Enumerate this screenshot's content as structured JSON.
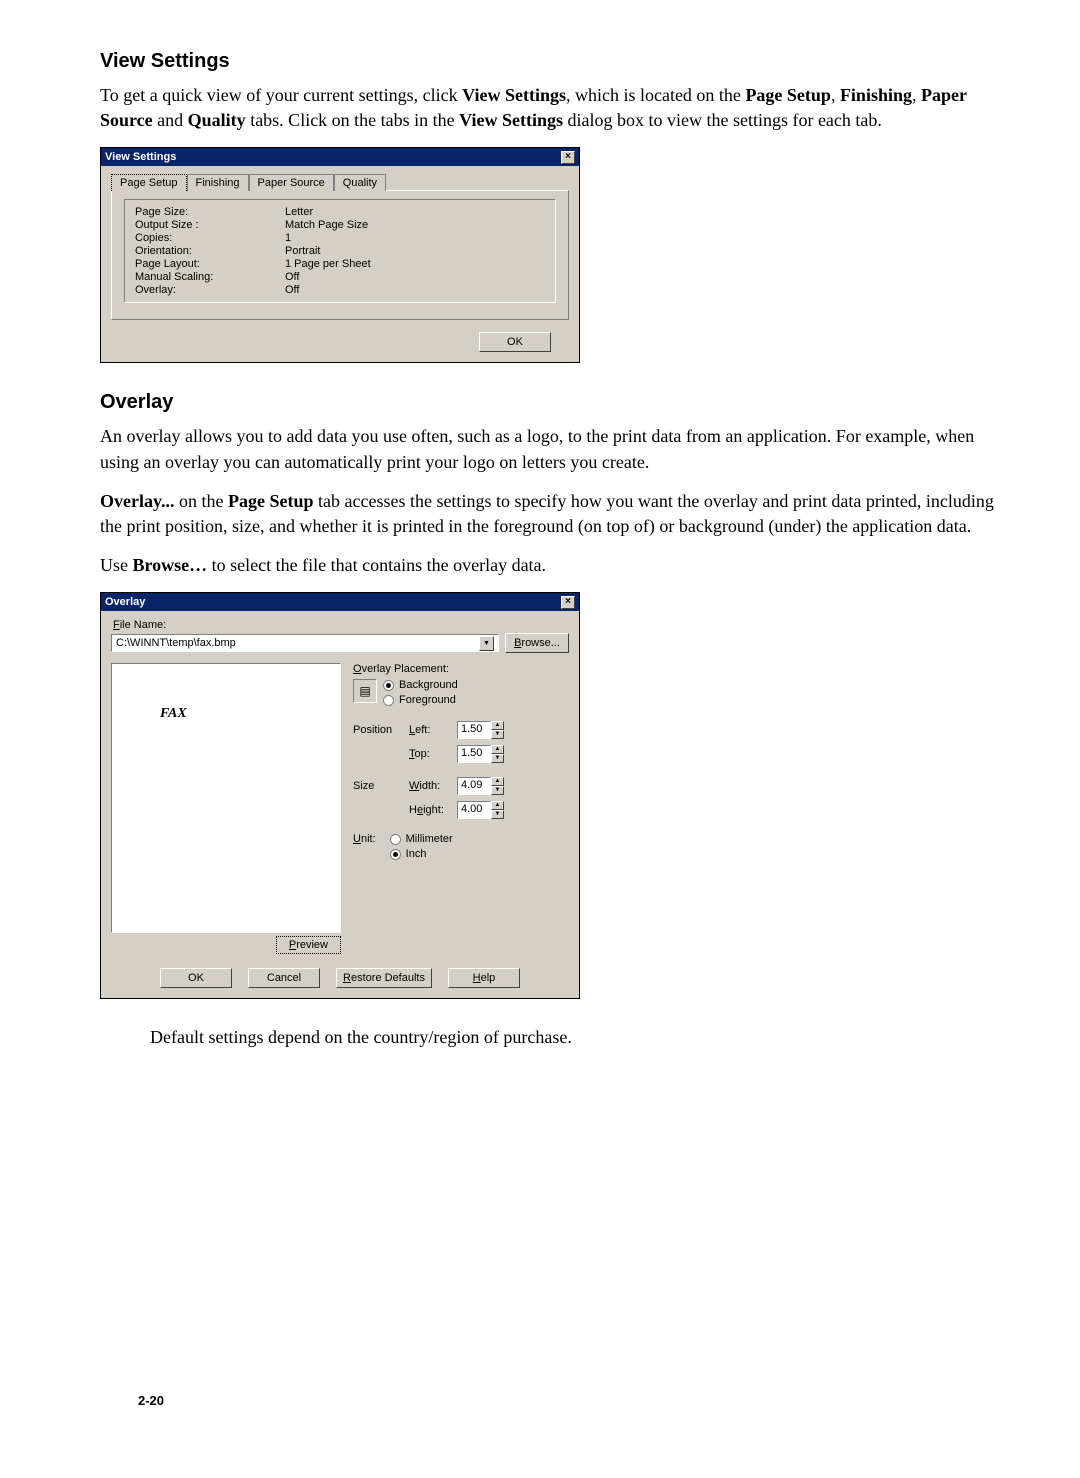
{
  "section1": {
    "heading": "View Settings",
    "para": "To get a quick view of your current settings, click <b>View Settings</b>, which is located on the <b>Page Setup</b>, <b>Finishing</b>, <b>Paper Source</b> and <b>Quality</b> tabs. Click on the tabs in the <b>View Settings</b> dialog box to view the settings for each tab."
  },
  "vsDialog": {
    "title": "View Settings",
    "tabs": [
      "Page Setup",
      "Finishing",
      "Paper Source",
      "Quality"
    ],
    "rows": [
      [
        "Page Size:",
        "Letter"
      ],
      [
        "Output Size :",
        "Match Page Size"
      ],
      [
        "Copies:",
        "1"
      ],
      [
        "Orientation:",
        "Portrait"
      ],
      [
        "Page Layout:",
        "1 Page per Sheet"
      ],
      [
        "Manual Scaling:",
        "Off"
      ],
      [
        "Overlay:",
        "Off"
      ]
    ],
    "ok": "OK"
  },
  "section2": {
    "heading": "Overlay",
    "para1": "An overlay allows you to add data you use often, such as a logo, to the print data from an application. For example, when using an overlay you can automatically print your logo on letters you create.",
    "para2": "<b>Overlay...</b> on the <b>Page Setup</b> tab accesses the settings to specify how you want the overlay and print data printed, including the print position, size, and whether it is printed in the foreground (on top of) or background (under) the application data.",
    "para3": "Use <b>Browse…</b> to select the file that contains the overlay data."
  },
  "ovDialog": {
    "title": "Overlay",
    "fileLabel": "File Name:",
    "filePath": "C:\\WINNT\\temp\\fax.bmp",
    "browse": "Browse...",
    "previewText": "FAX",
    "previewBtn": "Preview",
    "placementLabel": "Overlay Placement:",
    "radios": {
      "background": "Background",
      "foreground": "Foreground",
      "selected": "background"
    },
    "positionLabel": "Position",
    "sizeLabel": "Size",
    "fields": {
      "left": {
        "label": "Left:",
        "value": "1.50"
      },
      "top": {
        "label": "Top:",
        "value": "1.50"
      },
      "width": {
        "label": "Width:",
        "value": "4.09"
      },
      "height": {
        "label": "Height:",
        "value": "4.00"
      }
    },
    "unitLabel": "Unit:",
    "units": {
      "mm": "Millimeter",
      "inch": "Inch",
      "selected": "inch"
    },
    "buttons": {
      "ok": "OK",
      "cancel": "Cancel",
      "restore": "Restore Defaults",
      "help": "Help"
    }
  },
  "footnote": "Default settings depend on the country/region of purchase.",
  "pageNum": "2-20"
}
